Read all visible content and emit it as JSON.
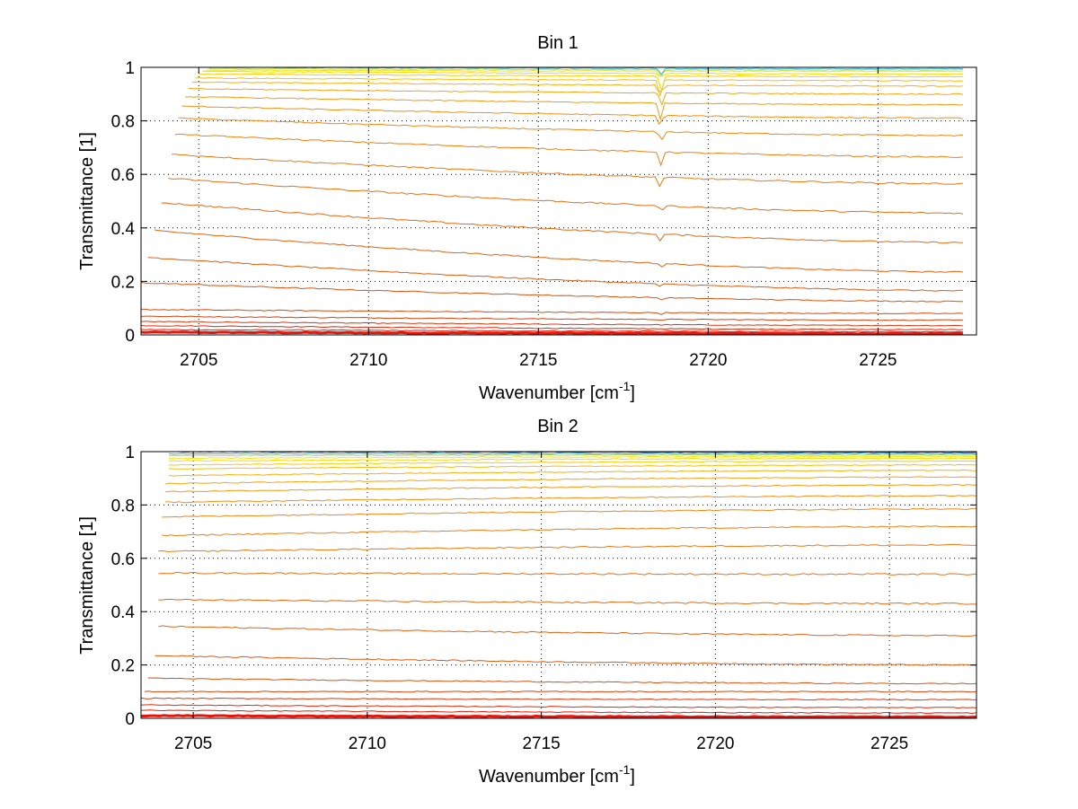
{
  "chart_data": [
    {
      "type": "line",
      "title": "Bin 1",
      "xlabel": "Wavenumber [cm",
      "xlabel_sup": "-1",
      "xlabel_end": "]",
      "ylabel": "Transmittance [1]",
      "xlim": [
        2703.3,
        2727.9
      ],
      "ylim": [
        0,
        1
      ],
      "xticks": [
        2705,
        2710,
        2715,
        2720,
        2725
      ],
      "xtick_labels": [
        "2705",
        "2710",
        "2715",
        "2720",
        "2725"
      ],
      "yticks": [
        0,
        0.2,
        0.4,
        0.6,
        0.8,
        1
      ],
      "ytick_labels": [
        "0",
        "0.2",
        "0.4",
        "0.6",
        "0.8",
        "1"
      ],
      "grid": true,
      "x_range": [
        2703.5,
        2727.5
      ],
      "x_start_per_series": [
        2703.3,
        2703.3,
        2703.3,
        2703.3,
        2703.3,
        2703.3,
        2703.3,
        2703.5,
        2703.7,
        2703.9,
        2704.1,
        2704.2,
        2704.3,
        2704.4,
        2704.5,
        2704.6,
        2704.7,
        2704.8,
        2704.9,
        2705.0,
        2705.1,
        2705.2,
        2705.3,
        2705.3
      ],
      "absorption_line_x": 2718.6,
      "series_start_values": [
        0.01,
        0.02,
        0.035,
        0.05,
        0.07,
        0.095,
        0.195,
        0.29,
        0.39,
        0.495,
        0.585,
        0.675,
        0.75,
        0.81,
        0.855,
        0.89,
        0.92,
        0.945,
        0.96,
        0.975,
        0.985,
        0.99,
        0.995,
        1.0
      ],
      "series_end_values": [
        0.005,
        0.012,
        0.02,
        0.035,
        0.055,
        0.08,
        0.125,
        0.165,
        0.235,
        0.345,
        0.455,
        0.565,
        0.665,
        0.745,
        0.81,
        0.86,
        0.9,
        0.93,
        0.95,
        0.965,
        0.975,
        0.985,
        0.99,
        0.995
      ],
      "series_colors": [
        "#e8150a",
        "#e41f0b",
        "#e02a0c",
        "#db360d",
        "#d8420e",
        "#d54a0f",
        "#d9540e",
        "#dc5d0f",
        "#df6410",
        "#e26b10",
        "#e57211",
        "#e87a11",
        "#eb8112",
        "#ee8812",
        "#f09012",
        "#f29a11",
        "#f5a410",
        "#f7b00e",
        "#f9bd0b",
        "#fbcb08",
        "#fcd805",
        "#f3e41c",
        "#b9e05a",
        "#3fbde0"
      ]
    },
    {
      "type": "line",
      "title": "Bin 2",
      "xlabel": "Wavenumber [cm",
      "xlabel_sup": "-1",
      "xlabel_end": "]",
      "ylabel": "Transmittance [1]",
      "xlim": [
        2703.5,
        2727.5
      ],
      "ylim": [
        0,
        1
      ],
      "xticks": [
        2705,
        2710,
        2715,
        2720,
        2725
      ],
      "xtick_labels": [
        "2705",
        "2710",
        "2715",
        "2720",
        "2725"
      ],
      "yticks": [
        0,
        0.2,
        0.4,
        0.6,
        0.8,
        1
      ],
      "ytick_labels": [
        "0",
        "0.2",
        "0.4",
        "0.6",
        "0.8",
        "1"
      ],
      "grid": true,
      "x_range": [
        2703.5,
        2727.5
      ],
      "x_start_per_series": [
        2703.5,
        2703.5,
        2703.5,
        2703.5,
        2703.6,
        2703.7,
        2703.9,
        2704.0,
        2704.0,
        2704.0,
        2704.0,
        2704.1,
        2704.1,
        2704.2,
        2704.2,
        2704.2,
        2704.3,
        2704.3,
        2704.3,
        2704.3,
        2704.3,
        2704.3,
        2704.3,
        2704.3
      ],
      "series_start_values": [
        0.01,
        0.03,
        0.05,
        0.075,
        0.1,
        0.15,
        0.235,
        0.345,
        0.445,
        0.545,
        0.625,
        0.685,
        0.755,
        0.81,
        0.85,
        0.88,
        0.91,
        0.935,
        0.95,
        0.965,
        0.975,
        0.985,
        0.992,
        1.0
      ],
      "series_end_values": [
        0.005,
        0.02,
        0.04,
        0.07,
        0.1,
        0.13,
        0.2,
        0.31,
        0.43,
        0.54,
        0.65,
        0.72,
        0.785,
        0.835,
        0.875,
        0.905,
        0.93,
        0.95,
        0.965,
        0.975,
        0.982,
        0.988,
        0.993,
        0.997
      ],
      "series_colors": [
        "#e8150a",
        "#e41f0b",
        "#df2c0c",
        "#da3a0d",
        "#d6460e",
        "#d9520e",
        "#dc5c0f",
        "#df6410",
        "#e26b10",
        "#e57211",
        "#e87a11",
        "#eb8112",
        "#ee8812",
        "#f09012",
        "#f29a11",
        "#f5a410",
        "#f7b00e",
        "#f9bd0b",
        "#fbcb08",
        "#fcd805",
        "#f3e41c",
        "#a9dc68",
        "#39b0d8",
        "#1f5fb8"
      ]
    }
  ]
}
